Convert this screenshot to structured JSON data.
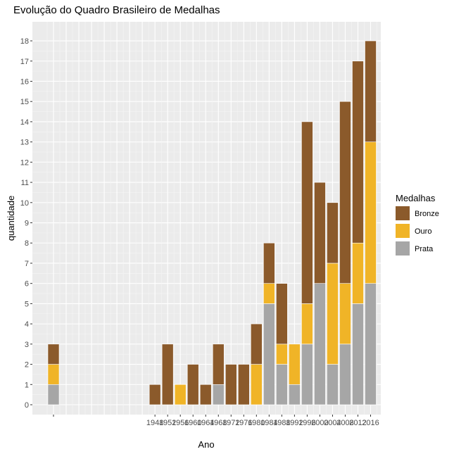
{
  "chart_data": {
    "type": "bar",
    "stacked": true,
    "title": "Evolução do Quadro Brasileiro de Medalhas",
    "xlabel": "Ano",
    "ylabel": "quantidade",
    "ylim": [
      0,
      18
    ],
    "yticks": [
      0,
      1,
      2,
      3,
      4,
      5,
      6,
      7,
      8,
      9,
      10,
      11,
      12,
      13,
      14,
      15,
      16,
      17,
      18
    ],
    "grid": true,
    "legend_position": "right",
    "legend_title": "Medalhas",
    "categories": [
      "",
      "1948",
      "1952",
      "1956",
      "1960",
      "1964",
      "1968",
      "1972",
      "1976",
      "1980",
      "1984",
      "1988",
      "1992",
      "1996",
      "2000",
      "2004",
      "2008",
      "2012",
      "2016"
    ],
    "category_slot": [
      0,
      8,
      9,
      10,
      11,
      12,
      13,
      14,
      15,
      16,
      17,
      18,
      19,
      20,
      21,
      22,
      23,
      24,
      25
    ],
    "series": [
      {
        "name": "Prata",
        "color": "#a6a6a6",
        "values": [
          1,
          0,
          0,
          0,
          0,
          0,
          1,
          0,
          0,
          0,
          5,
          2,
          1,
          3,
          6,
          2,
          3,
          5,
          6
        ]
      },
      {
        "name": "Ouro",
        "color": "#f0b427",
        "values": [
          1,
          0,
          0,
          1,
          0,
          0,
          0,
          0,
          0,
          2,
          1,
          1,
          2,
          2,
          0,
          5,
          3,
          3,
          7
        ]
      },
      {
        "name": "Bronze",
        "color": "#8b5a2b",
        "values": [
          1,
          1,
          3,
          0,
          2,
          1,
          2,
          2,
          2,
          2,
          2,
          3,
          0,
          9,
          5,
          3,
          9,
          9,
          5
        ]
      }
    ],
    "legend_order": [
      "Bronze",
      "Ouro",
      "Prata"
    ]
  }
}
